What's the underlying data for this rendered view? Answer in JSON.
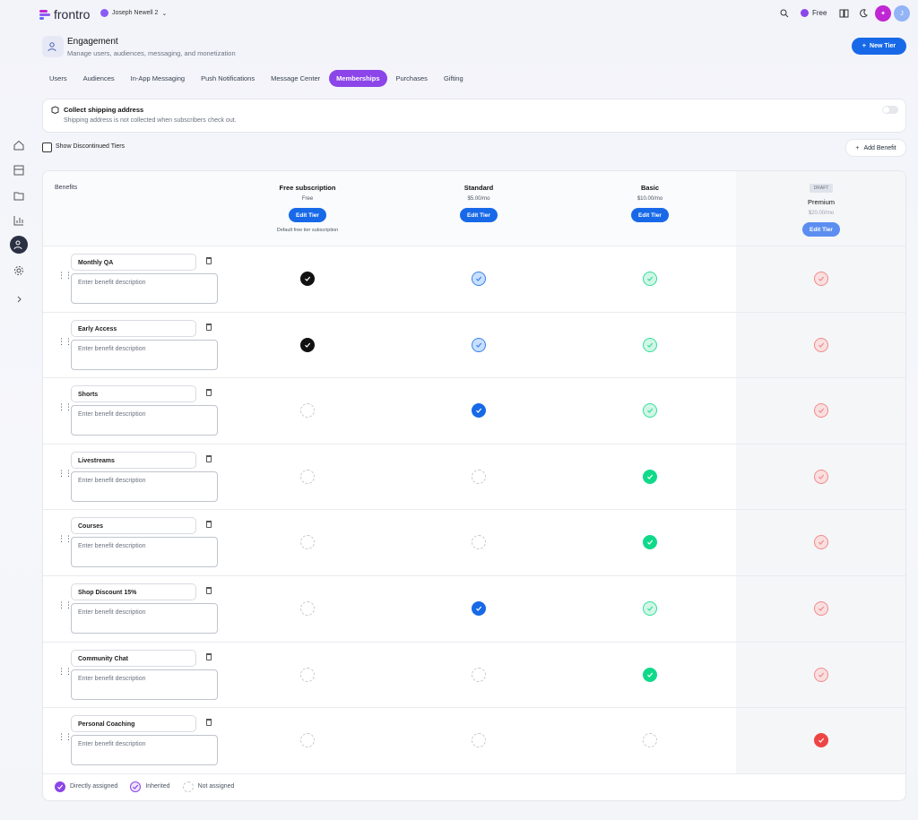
{
  "header": {
    "logo": "frontro",
    "workspace": "Joseph Newell 2",
    "plan": "Free",
    "avatar": "J"
  },
  "page": {
    "title": "Engagement",
    "subtitle": "Manage users, audiences, messaging, and monetization",
    "new_tier": "New Tier"
  },
  "tabs": {
    "items": [
      "Users",
      "Audiences",
      "In-App Messaging",
      "Push Notifications",
      "Message Center",
      "Memberships",
      "Purchases",
      "Gifting"
    ],
    "active": 5
  },
  "shipping": {
    "title": "Collect shipping address",
    "description": "Shipping address is not collected when subscribers check out."
  },
  "toolbar": {
    "show_discontinued": "Show Discontinued Tiers",
    "add_benefit": "Add Benefit"
  },
  "table": {
    "benefits_header": "Benefits",
    "tiers": [
      {
        "name": "Free subscription",
        "price": "Free",
        "button": "Edit Tier",
        "note": "Default free tier subscription",
        "color": "#111111",
        "light": "#111111"
      },
      {
        "name": "Standard",
        "price": "$5.00/mo",
        "button": "Edit Tier",
        "color": "#1769e8",
        "light": "#bfdbfe"
      },
      {
        "name": "Basic",
        "price": "$10.00/mo",
        "button": "Edit Tier",
        "color": "#10d98a",
        "light": "#c9f5e2"
      },
      {
        "name": "Premium",
        "price": "$20.00/mo",
        "button": "Edit Tier",
        "badge": "DRAFT",
        "color": "#ef4444",
        "light": "#fcd0d0"
      }
    ],
    "description_placeholder": "Enter benefit description",
    "rows": [
      {
        "name": "Monthly QA",
        "cells": [
          "direct",
          "inherited",
          "inherited",
          "inherited"
        ]
      },
      {
        "name": "Early Access",
        "cells": [
          "direct",
          "inherited",
          "inherited",
          "inherited"
        ]
      },
      {
        "name": "Shorts",
        "cells": [
          "none",
          "direct",
          "inherited",
          "inherited"
        ]
      },
      {
        "name": "Livestreams",
        "cells": [
          "none",
          "none",
          "direct",
          "inherited"
        ]
      },
      {
        "name": "Courses",
        "cells": [
          "none",
          "none",
          "direct",
          "inherited"
        ]
      },
      {
        "name": "Shop Discount 15%",
        "cells": [
          "none",
          "direct",
          "inherited",
          "inherited"
        ]
      },
      {
        "name": "Community Chat",
        "cells": [
          "none",
          "none",
          "direct",
          "inherited"
        ]
      },
      {
        "name": "Personal Coaching",
        "cells": [
          "none",
          "none",
          "none",
          "direct"
        ]
      }
    ]
  },
  "legend": {
    "direct": "Directly assigned",
    "inherited": "Inherited",
    "none": "Not assigned"
  }
}
